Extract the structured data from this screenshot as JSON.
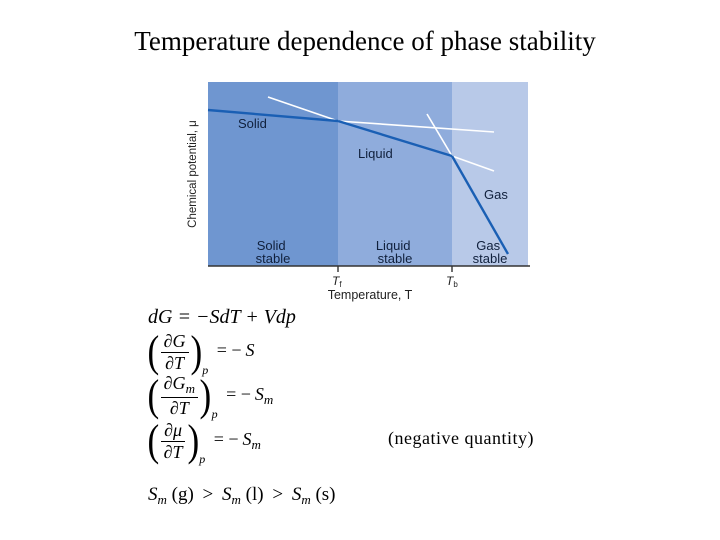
{
  "title": "Temperature dependence of phase stability",
  "diagram": {
    "y_axis_label": "Chemical potential, μ",
    "x_axis_label": "Temperature, T",
    "tick_labels": {
      "tf": "T",
      "tf_sub": "f",
      "tb": "T",
      "tb_sub": "b"
    },
    "curve_labels": {
      "solid": "Solid",
      "liquid": "Liquid",
      "gas": "Gas"
    },
    "region_labels": {
      "solid": [
        "Solid",
        "stable"
      ],
      "liquid": [
        "Liquid",
        "stable"
      ],
      "gas": [
        "Gas",
        "stable"
      ]
    },
    "colors": {
      "solid_region": "#6f96d0",
      "liquid_region": "#8facdc",
      "gas_region": "#b8c9e8",
      "line": "#1a5fb4",
      "extension": "#ffffff"
    }
  },
  "equations": {
    "eq1": {
      "lhs": "dG",
      "rhs": "= −SdT + Vdp"
    },
    "eq2": {
      "num": "∂G",
      "den": "∂T",
      "sub": "p",
      "rhs_sign": "= −",
      "rhs_var": "S",
      "rhs_sub": ""
    },
    "eq3": {
      "num": "∂G",
      "num_sub": "m",
      "den": "∂T",
      "sub": "p",
      "rhs_sign": "= −",
      "rhs_var": "S",
      "rhs_sub": "m"
    },
    "eq4": {
      "num": "∂μ",
      "den": "∂T",
      "sub": "p",
      "rhs_sign": "= −",
      "rhs_var": "S",
      "rhs_sub": "m"
    },
    "note": "(negative quantity)",
    "inequality": {
      "a_var": "S",
      "a_sub": "m",
      "a_arg": "(g)",
      "op1": ">",
      "b_var": "S",
      "b_sub": "m",
      "b_arg": "(l)",
      "op2": ">",
      "c_var": "S",
      "c_sub": "m",
      "c_arg": "(s)"
    }
  }
}
